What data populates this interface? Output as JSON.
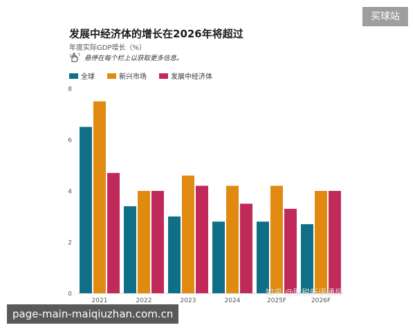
{
  "badge": {
    "text": "买球站"
  },
  "header": {
    "title": "发展中经济体的增长在2026年将超过",
    "subtitle": "年度实际GDP增长（%）",
    "hint": "悬停在每个栏上以获取更多信息。",
    "hint_icon": "hand-pointer-icon"
  },
  "watermark": {
    "text": "知乎 @财税新语通局"
  },
  "url_overlay": {
    "text": "page-main-maiqiuzhan.com.cn"
  },
  "chart_data": {
    "type": "bar",
    "title": "发展中经济体的增长在2026年将超过",
    "subtitle": "年度实际GDP增长（%）",
    "xlabel": "",
    "ylabel": "",
    "ylim": [
      0,
      8
    ],
    "yticks": [
      0,
      2,
      4,
      6,
      8
    ],
    "grid": false,
    "legend_position": "top-left",
    "categories": [
      "2021",
      "2022",
      "2023",
      "2024",
      "2025F",
      "2026F"
    ],
    "series": [
      {
        "name": "全球",
        "color": "#0e6f86",
        "values": [
          6.5,
          3.4,
          3.0,
          2.8,
          2.8,
          2.7
        ]
      },
      {
        "name": "新兴市场",
        "color": "#e08a12",
        "values": [
          7.5,
          4.0,
          4.6,
          4.2,
          4.2,
          4.0
        ]
      },
      {
        "name": "发展中经济体",
        "color": "#c02a5a",
        "values": [
          4.7,
          4.0,
          4.2,
          3.5,
          3.3,
          4.0
        ]
      }
    ]
  }
}
